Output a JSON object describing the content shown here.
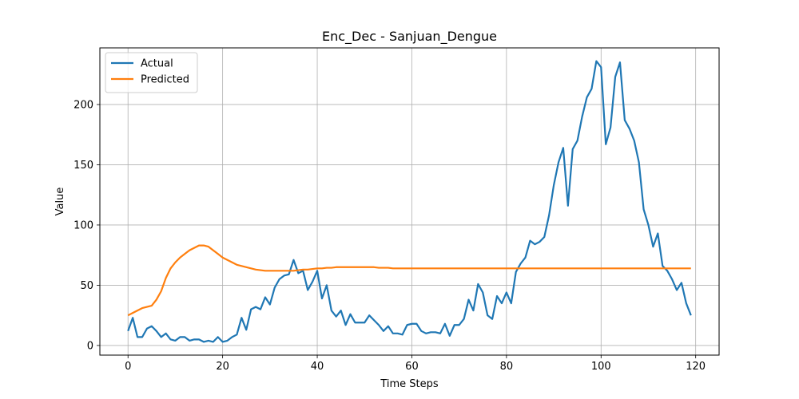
{
  "chart_data": {
    "type": "line",
    "title": "Enc_Dec - Sanjuan_Dengue",
    "xlabel": "Time Steps",
    "ylabel": "Value",
    "xlim": [
      -5.95,
      124.95
    ],
    "ylim": [
      -8,
      247
    ],
    "xticks": [
      0,
      20,
      40,
      60,
      80,
      100,
      120
    ],
    "yticks": [
      0,
      50,
      100,
      150,
      200
    ],
    "grid": true,
    "legend_position": "top-left",
    "series": [
      {
        "name": "Actual",
        "color": "#1f77b4",
        "values": [
          12,
          23,
          7,
          7,
          14,
          16,
          12,
          7,
          10,
          5,
          4,
          7,
          7,
          4,
          5,
          5,
          3,
          4,
          3,
          7,
          3,
          4,
          7,
          9,
          23,
          13,
          30,
          32,
          30,
          40,
          34,
          48,
          55,
          58,
          59,
          71,
          60,
          62,
          46,
          53,
          62,
          39,
          50,
          29,
          24,
          29,
          17,
          26,
          19,
          19,
          19,
          25,
          21,
          17,
          12,
          16,
          10,
          10,
          9,
          17,
          18,
          18,
          12,
          10,
          11,
          11,
          10,
          18,
          8,
          17,
          17,
          22,
          38,
          29,
          51,
          44,
          25,
          22,
          41,
          35,
          44,
          35,
          61,
          68,
          73,
          87,
          84,
          86,
          90,
          108,
          133,
          152,
          164,
          116,
          163,
          170,
          190,
          206,
          213,
          236,
          231,
          167,
          181,
          223,
          235,
          187,
          180,
          170,
          152,
          113,
          100,
          82,
          93,
          66,
          62,
          55,
          46,
          52,
          35,
          25
        ]
      },
      {
        "name": "Predicted",
        "color": "#ff7f0e",
        "values": [
          25,
          27,
          29,
          31,
          32,
          33,
          38,
          45,
          56,
          64,
          69,
          73,
          76,
          79,
          81,
          83,
          83,
          82,
          79,
          76,
          73,
          71,
          69,
          67,
          66,
          65,
          64,
          63,
          62.5,
          62,
          62,
          62,
          62,
          62,
          62,
          62,
          62.5,
          63,
          63,
          63.5,
          64,
          64,
          64.5,
          64.5,
          65,
          65,
          65,
          65,
          65,
          65,
          65,
          65,
          65,
          64.5,
          64.5,
          64.5,
          64,
          64,
          64,
          64,
          64,
          64,
          64,
          64,
          64,
          64,
          64,
          64,
          64,
          64,
          64,
          64,
          64,
          64,
          64,
          64,
          64,
          64,
          64,
          64,
          64,
          64,
          64,
          64,
          64,
          64,
          64,
          64,
          64,
          64,
          64,
          64,
          64,
          64,
          64,
          64,
          64,
          64,
          64,
          64,
          64,
          64,
          64,
          64,
          64,
          64,
          64,
          64,
          64,
          64,
          64,
          64,
          64,
          64,
          64,
          64,
          64,
          64,
          64,
          64
        ]
      }
    ]
  }
}
